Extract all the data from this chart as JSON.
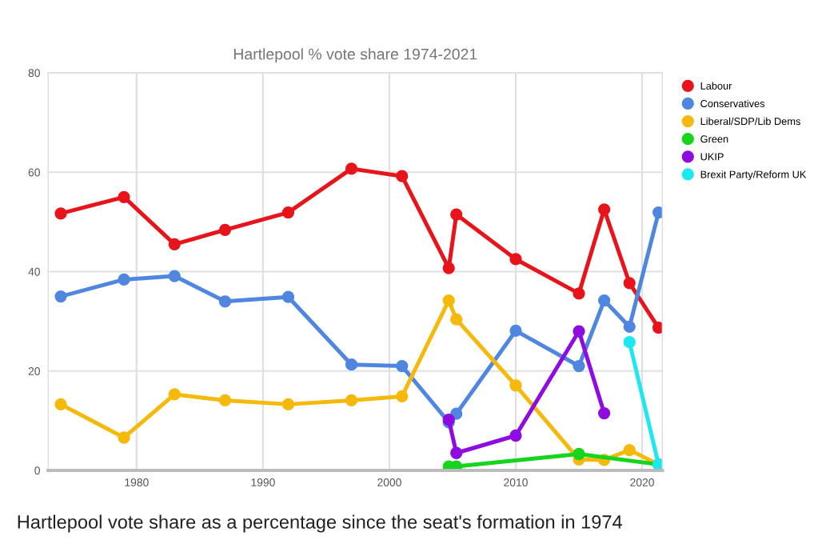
{
  "chart_data": {
    "type": "line",
    "title": "Hartlepool % vote share 1974-2021",
    "xlim": [
      1973,
      2021.6
    ],
    "xticks": [
      1980,
      1990,
      2000,
      2010,
      2020
    ],
    "ylim": [
      0,
      80
    ],
    "yticks": [
      0,
      20,
      40,
      60,
      80
    ],
    "grid": true,
    "legend": "right",
    "marker": "circle",
    "line_style": "solid",
    "annotations": [
      "Hartlepool vote share as a percentage since the seat's formation in 1974"
    ],
    "series": [
      {
        "name": "Labour",
        "color": "#e8141b",
        "x": [
          1974,
          1979,
          1983,
          1987,
          1992,
          1997,
          2001,
          2004.7,
          2005.3,
          2010,
          2015,
          2017,
          2019,
          2021.3
        ],
        "values": [
          51.7,
          55.0,
          45.5,
          48.4,
          51.9,
          60.7,
          59.2,
          40.7,
          51.5,
          42.5,
          35.6,
          52.5,
          37.7,
          28.7
        ]
      },
      {
        "name": "Conservatives",
        "color": "#4f86e0",
        "x": [
          1974,
          1979,
          1983,
          1987,
          1992,
          1997,
          2001,
          2004.7,
          2005.3,
          2010,
          2015,
          2017,
          2019,
          2021.3
        ],
        "values": [
          35.0,
          38.4,
          39.1,
          34.0,
          34.9,
          21.3,
          21.0,
          9.7,
          11.4,
          28.1,
          21.0,
          34.2,
          28.9,
          51.9
        ]
      },
      {
        "name": "Liberal/SDP/Lib Dems",
        "color": "#f5b90c",
        "x": [
          1974,
          1979,
          1983,
          1987,
          1992,
          1997,
          2001,
          2004.7,
          2005.3,
          2010,
          2015,
          2017,
          2019,
          2021.3
        ],
        "values": [
          13.3,
          6.6,
          15.3,
          14.1,
          13.3,
          14.1,
          14.9,
          34.2,
          30.4,
          17.1,
          2.2,
          2.1,
          4.1,
          1.2
        ]
      },
      {
        "name": "Green",
        "color": "#17d41c",
        "x": [
          2004.7,
          2005.3,
          2015,
          2021.3
        ],
        "values": [
          0.8,
          0.8,
          3.3,
          1.2
        ]
      },
      {
        "name": "UKIP",
        "color": "#8e0ce0",
        "x": [
          2004.7,
          2005.3,
          2010,
          2015,
          2017
        ],
        "values": [
          10.2,
          3.5,
          7.0,
          28.0,
          11.5
        ]
      },
      {
        "name": "Brexit Party/Reform UK",
        "color": "#1de8f0",
        "x": [
          2019,
          2021.3
        ],
        "values": [
          25.8,
          1.2
        ]
      }
    ]
  }
}
